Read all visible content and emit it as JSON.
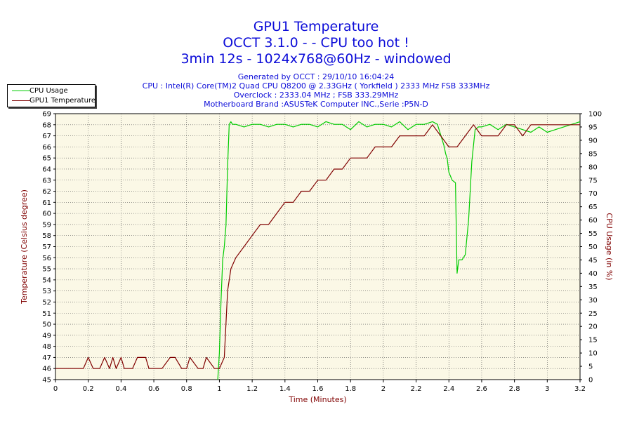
{
  "header": {
    "title_line1": "GPU1 Temperature",
    "title_line2": "OCCT 3.1.0 -  - CPU too hot !",
    "title_line3": "3min 12s - 1024x768@60Hz - windowed",
    "info_line1": "Generated by OCCT : 29/10/10 16:04:24",
    "info_line2": "CPU : Intel(R) Core(TM)2 Quad CPU Q8200 @ 2.33GHz ( Yorkfield ) 2333 MHz FSB 333MHz",
    "info_line3": "Overclock : 2333.04 MHz ; FSB 333.29MHz",
    "info_line4": "Motherboard Brand :ASUSTeK Computer INC.,Serie :P5N-D"
  },
  "colors": {
    "cpu_usage": "#00cc00",
    "gpu_temp": "#800000",
    "title": "#0c0cd8",
    "axis_label": "#800000",
    "plot_bg": "#fbf8e6",
    "grid": "#555555"
  },
  "chart_data": {
    "type": "line",
    "xlabel": "Time (Minutes)",
    "ylabel": "Temperature (Celsius degree)",
    "y2label": "CPU Usage (in %)",
    "xlim": [
      0,
      3.2
    ],
    "ylim": [
      45,
      69
    ],
    "y2lim": [
      0,
      100
    ],
    "x_ticks": [
      "0",
      "0.2",
      "0.4",
      "0.6",
      "0.8",
      "1",
      "1.2",
      "1.4",
      "1.6",
      "1.8",
      "2",
      "2.2",
      "2.4",
      "2.6",
      "2.8",
      "3",
      "3.2"
    ],
    "y_ticks": [
      "45",
      "46",
      "47",
      "48",
      "49",
      "50",
      "51",
      "52",
      "53",
      "54",
      "55",
      "56",
      "57",
      "58",
      "59",
      "60",
      "61",
      "62",
      "63",
      "64",
      "65",
      "66",
      "67",
      "68",
      "69"
    ],
    "y2_ticks": [
      "0",
      "5",
      "10",
      "15",
      "20",
      "25",
      "30",
      "35",
      "40",
      "45",
      "50",
      "55",
      "60",
      "65",
      "70",
      "75",
      "80",
      "85",
      "90",
      "95",
      "100"
    ],
    "grid": true,
    "legend_position": "top-left-outside",
    "series": [
      {
        "name": "CPU Usage",
        "axis": "right",
        "x": [
          0.99,
          1.0,
          1.01,
          1.02,
          1.03,
          1.04,
          1.05,
          1.06,
          1.07,
          1.08,
          1.1,
          1.15,
          1.2,
          1.25,
          1.3,
          1.35,
          1.4,
          1.45,
          1.5,
          1.55,
          1.6,
          1.65,
          1.7,
          1.75,
          1.8,
          1.85,
          1.9,
          1.95,
          2.0,
          2.05,
          2.1,
          2.15,
          2.2,
          2.25,
          2.3,
          2.33,
          2.35,
          2.37,
          2.38,
          2.39,
          2.4,
          2.42,
          2.44,
          2.45,
          2.46,
          2.48,
          2.5,
          2.52,
          2.54,
          2.56,
          2.58,
          2.6,
          2.65,
          2.7,
          2.75,
          2.8,
          2.85,
          2.9,
          2.95,
          3.0,
          3.05,
          3.1,
          3.15,
          3.2
        ],
        "y": [
          0,
          10,
          30,
          45,
          50,
          58,
          80,
          96,
          97,
          96,
          96,
          95,
          96,
          96,
          95,
          96,
          96,
          95,
          96,
          96,
          95,
          97,
          96,
          96,
          94,
          97,
          95,
          96,
          96,
          95,
          97,
          94,
          96,
          96,
          97,
          96,
          92,
          88,
          85,
          83,
          78,
          75,
          74,
          40,
          45,
          45,
          47,
          60,
          82,
          94,
          95,
          95,
          96,
          94,
          96,
          95,
          94,
          93,
          95,
          93,
          94,
          95,
          96,
          97
        ]
      },
      {
        "name": "GPU1 Temperature",
        "axis": "left",
        "x": [
          0,
          0.17,
          0.2,
          0.23,
          0.27,
          0.3,
          0.33,
          0.35,
          0.37,
          0.4,
          0.42,
          0.47,
          0.5,
          0.55,
          0.57,
          0.6,
          0.65,
          0.7,
          0.73,
          0.77,
          0.8,
          0.82,
          0.87,
          0.9,
          0.92,
          0.97,
          1.0,
          1.03,
          1.05,
          1.07,
          1.1,
          1.15,
          1.2,
          1.25,
          1.3,
          1.35,
          1.4,
          1.45,
          1.5,
          1.55,
          1.6,
          1.65,
          1.7,
          1.75,
          1.8,
          1.85,
          1.9,
          1.95,
          2.0,
          2.05,
          2.1,
          2.15,
          2.2,
          2.25,
          2.3,
          2.35,
          2.4,
          2.45,
          2.5,
          2.55,
          2.6,
          2.65,
          2.7,
          2.75,
          2.8,
          2.85,
          2.9,
          2.95,
          3.0,
          3.05,
          3.1,
          3.15,
          3.2
        ],
        "y": [
          46,
          46,
          47,
          46,
          46,
          47,
          46,
          47,
          46,
          47,
          46,
          46,
          47,
          47,
          46,
          46,
          46,
          47,
          47,
          46,
          46,
          47,
          46,
          46,
          47,
          46,
          46,
          47,
          53,
          55,
          56,
          57,
          58,
          59,
          59,
          60,
          61,
          61,
          62,
          62,
          63,
          63,
          64,
          64,
          65,
          65,
          65,
          66,
          66,
          66,
          67,
          67,
          67,
          67,
          68,
          67,
          66,
          66,
          67,
          68,
          67,
          67,
          67,
          68,
          68,
          67,
          68,
          68,
          68,
          68,
          68,
          68,
          68
        ]
      }
    ]
  }
}
